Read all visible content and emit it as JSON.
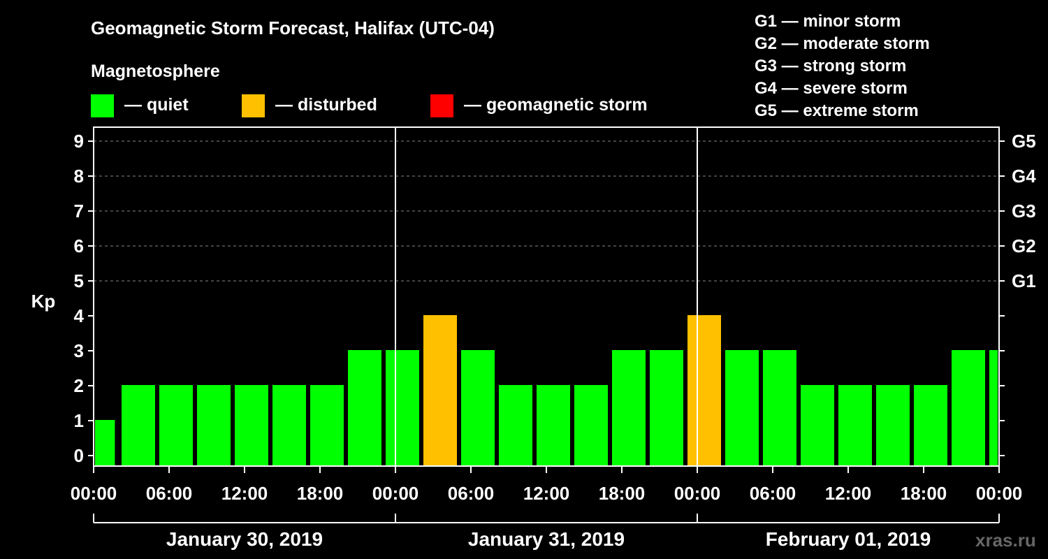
{
  "title": "Geomagnetic Storm Forecast, Halifax (UTC-04)",
  "legend": {
    "heading": "Magnetosphere",
    "items": [
      {
        "label": "— quiet",
        "color": "#00ff00"
      },
      {
        "label": "— disturbed",
        "color": "#ffc000"
      },
      {
        "label": "— geomagnetic storm",
        "color": "#ff0000"
      }
    ]
  },
  "g_scale": [
    "G1 — minor storm",
    "G2 — moderate storm",
    "G3 — strong storm",
    "G4 — severe storm",
    "G5 — extreme storm"
  ],
  "watermark": "xras.ru",
  "chart_data": {
    "type": "bar",
    "ylabel": "Kp",
    "ylim": [
      0,
      9
    ],
    "yticks": [
      "0",
      "1",
      "2",
      "3",
      "4",
      "5",
      "6",
      "7",
      "8",
      "9"
    ],
    "right_ticks": [
      {
        "value": 5,
        "label": "G1"
      },
      {
        "value": 6,
        "label": "G2"
      },
      {
        "value": 7,
        "label": "G3"
      },
      {
        "value": 8,
        "label": "G4"
      },
      {
        "value": 9,
        "label": "G5"
      }
    ],
    "grid": "dashed horizontal at 5-9",
    "x_hours_range": [
      0,
      72
    ],
    "xticks": [
      "00:00",
      "06:00",
      "12:00",
      "18:00",
      "00:00",
      "06:00",
      "12:00",
      "18:00",
      "00:00",
      "06:00",
      "12:00",
      "18:00",
      "00:00"
    ],
    "dates": [
      "January 30, 2019",
      "January 31, 2019",
      "February 01, 2019"
    ],
    "bars": [
      {
        "start_hour": 0,
        "end_hour": 1.8,
        "kp": 1,
        "status": "quiet"
      },
      {
        "start_hour": 2,
        "end_hour": 5,
        "kp": 2,
        "status": "quiet"
      },
      {
        "start_hour": 5,
        "end_hour": 8,
        "kp": 2,
        "status": "quiet"
      },
      {
        "start_hour": 8,
        "end_hour": 11,
        "kp": 2,
        "status": "quiet"
      },
      {
        "start_hour": 11,
        "end_hour": 14,
        "kp": 2,
        "status": "quiet"
      },
      {
        "start_hour": 14,
        "end_hour": 17,
        "kp": 2,
        "status": "quiet"
      },
      {
        "start_hour": 17,
        "end_hour": 20,
        "kp": 2,
        "status": "quiet"
      },
      {
        "start_hour": 20,
        "end_hour": 23,
        "kp": 3,
        "status": "quiet"
      },
      {
        "start_hour": 23,
        "end_hour": 26,
        "kp": 3,
        "status": "quiet"
      },
      {
        "start_hour": 26,
        "end_hour": 29,
        "kp": 4,
        "status": "disturbed"
      },
      {
        "start_hour": 29,
        "end_hour": 32,
        "kp": 3,
        "status": "quiet"
      },
      {
        "start_hour": 32,
        "end_hour": 35,
        "kp": 2,
        "status": "quiet"
      },
      {
        "start_hour": 35,
        "end_hour": 38,
        "kp": 2,
        "status": "quiet"
      },
      {
        "start_hour": 38,
        "end_hour": 41,
        "kp": 2,
        "status": "quiet"
      },
      {
        "start_hour": 41,
        "end_hour": 44,
        "kp": 3,
        "status": "quiet"
      },
      {
        "start_hour": 44,
        "end_hour": 47,
        "kp": 3,
        "status": "quiet"
      },
      {
        "start_hour": 47,
        "end_hour": 50,
        "kp": 4,
        "status": "disturbed"
      },
      {
        "start_hour": 50,
        "end_hour": 53,
        "kp": 3,
        "status": "quiet"
      },
      {
        "start_hour": 53,
        "end_hour": 56,
        "kp": 3,
        "status": "quiet"
      },
      {
        "start_hour": 56,
        "end_hour": 59,
        "kp": 2,
        "status": "quiet"
      },
      {
        "start_hour": 59,
        "end_hour": 62,
        "kp": 2,
        "status": "quiet"
      },
      {
        "start_hour": 62,
        "end_hour": 65,
        "kp": 2,
        "status": "quiet"
      },
      {
        "start_hour": 65,
        "end_hour": 68,
        "kp": 2,
        "status": "quiet"
      },
      {
        "start_hour": 68,
        "end_hour": 71,
        "kp": 3,
        "status": "quiet"
      },
      {
        "start_hour": 71,
        "end_hour": 72,
        "kp": 3,
        "status": "quiet"
      }
    ],
    "status_colors": {
      "quiet": "#00ff00",
      "disturbed": "#ffc000",
      "storm": "#ff0000"
    }
  }
}
